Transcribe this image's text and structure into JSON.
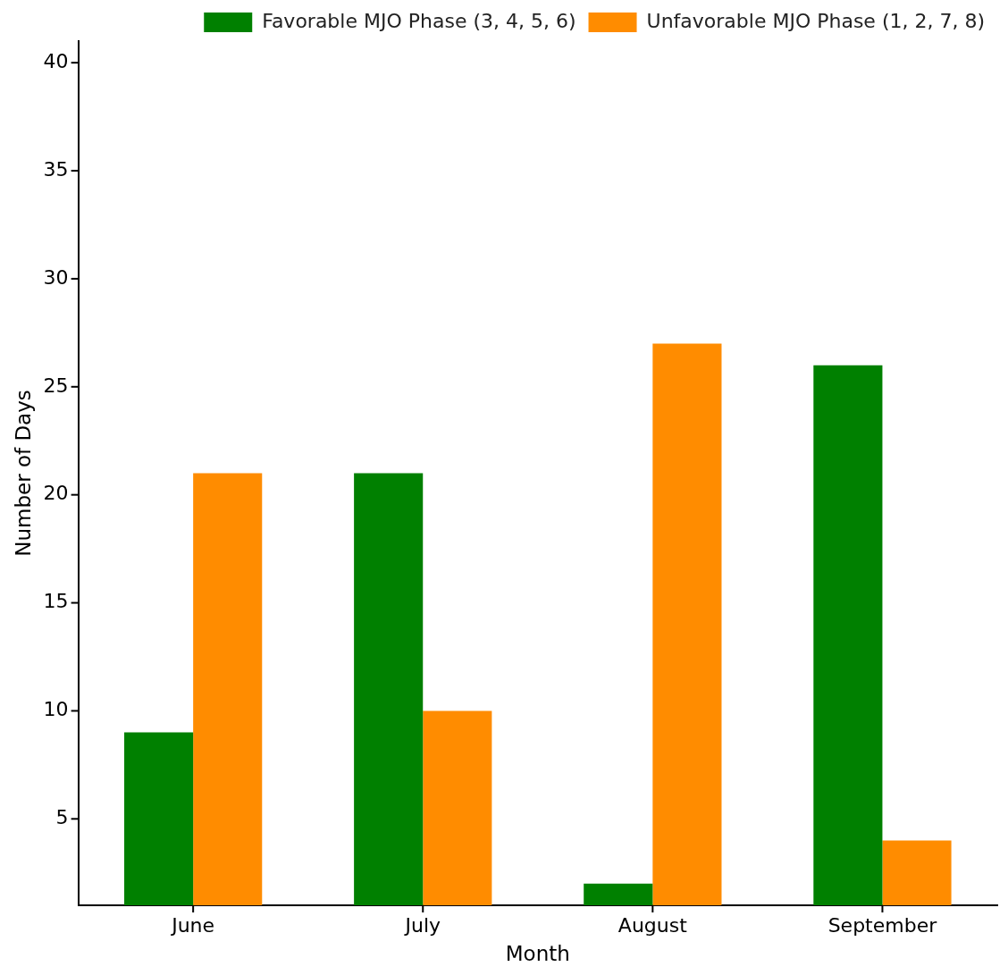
{
  "chart_data": {
    "type": "bar",
    "xlabel": "Month",
    "ylabel": "Number of Days",
    "categories": [
      "June",
      "July",
      "August",
      "September"
    ],
    "series": [
      {
        "name": "Favorable MJO Phase (3, 4, 5, 6)",
        "color": "#008000",
        "values": [
          9,
          21,
          2,
          26
        ]
      },
      {
        "name": "Unfavorable MJO Phase (1, 2, 7, 8)",
        "color": "#ff8c00",
        "values": [
          21,
          10,
          27,
          4
        ]
      }
    ],
    "ylim": [
      1,
      41
    ],
    "yticks": [
      5,
      10,
      15,
      20,
      25,
      30,
      35,
      40
    ],
    "grid": false,
    "legend": "top right"
  }
}
